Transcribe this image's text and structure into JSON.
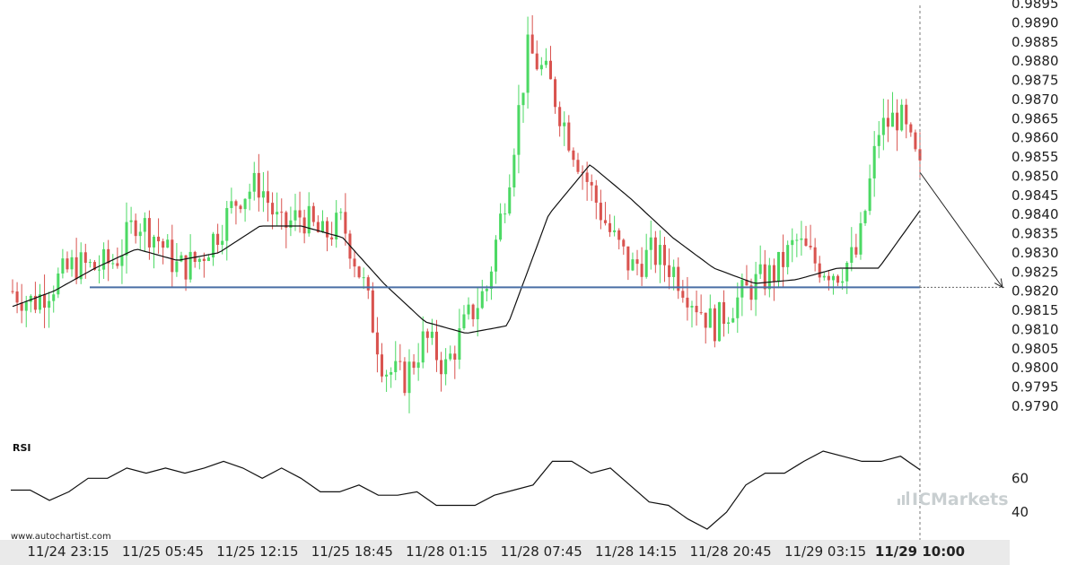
{
  "chart_data": [
    {
      "type": "candlestick",
      "title": "",
      "ylim": [
        0.9786,
        0.9895
      ],
      "y_ticks": [
        "0.9895",
        "0.9890",
        "0.9885",
        "0.9880",
        "0.9875",
        "0.9870",
        "0.9865",
        "0.9860",
        "0.9855",
        "0.9850",
        "0.9845",
        "0.9840",
        "0.9835",
        "0.9830",
        "0.9825",
        "0.9820",
        "0.9815",
        "0.9810",
        "0.9805",
        "0.9800",
        "0.9795",
        "0.9790"
      ],
      "x_ticks": [
        "11/24 23:15",
        "11/25 05:45",
        "11/25 12:15",
        "11/25 18:45",
        "11/28 01:15",
        "11/28 07:45",
        "11/28 14:15",
        "11/28 20:45",
        "11/29 03:15",
        "11/29 10:00"
      ],
      "highlighted_x_tick": "11/29 10:00",
      "close_anchors": [
        0.982,
        0.9817,
        0.9822,
        0.9827,
        0.9826,
        0.9828,
        0.9839,
        0.9834,
        0.9826,
        0.9828,
        0.9836,
        0.9845,
        0.9848,
        0.9836,
        0.984,
        0.9834,
        0.9838,
        0.9822,
        0.98,
        0.9797,
        0.9808,
        0.98,
        0.9812,
        0.9821,
        0.9848,
        0.9883,
        0.9875,
        0.986,
        0.9847,
        0.9835,
        0.9826,
        0.983,
        0.9826,
        0.9818,
        0.9811,
        0.9817,
        0.9822,
        0.9825,
        0.9833,
        0.9827,
        0.9825,
        0.983,
        0.9862,
        0.9866,
        0.9851
      ],
      "moving_average_anchors": [
        0.9816,
        0.982,
        0.9826,
        0.9831,
        0.9828,
        0.983,
        0.9837,
        0.9837,
        0.9834,
        0.9822,
        0.9812,
        0.9809,
        0.9811,
        0.984,
        0.9853,
        0.9844,
        0.9834,
        0.9826,
        0.9822,
        0.9823,
        0.9826,
        0.9826,
        0.9841
      ],
      "support_level": 0.9821,
      "support_color": "#4a6fa5",
      "forecast": {
        "from": 0.9851,
        "to": 0.9821
      },
      "up_color": "#4cd964",
      "down_color": "#d9534f"
    },
    {
      "type": "line",
      "title": "RSI",
      "ylim": [
        30,
        85
      ],
      "y_ticks": [
        "60",
        "40"
      ],
      "values": [
        53,
        53,
        47,
        52,
        60,
        60,
        66,
        63,
        66,
        63,
        66,
        70,
        66,
        60,
        66,
        60,
        52,
        52,
        56,
        50,
        50,
        52,
        44,
        44,
        44,
        50,
        53,
        56,
        70,
        70,
        63,
        66,
        56,
        46,
        44,
        36,
        30,
        40,
        56,
        63,
        63,
        70,
        76,
        73,
        70,
        70,
        73,
        65
      ]
    }
  ],
  "watermark": "www.autochartist.com",
  "brand": "ICMarkets"
}
